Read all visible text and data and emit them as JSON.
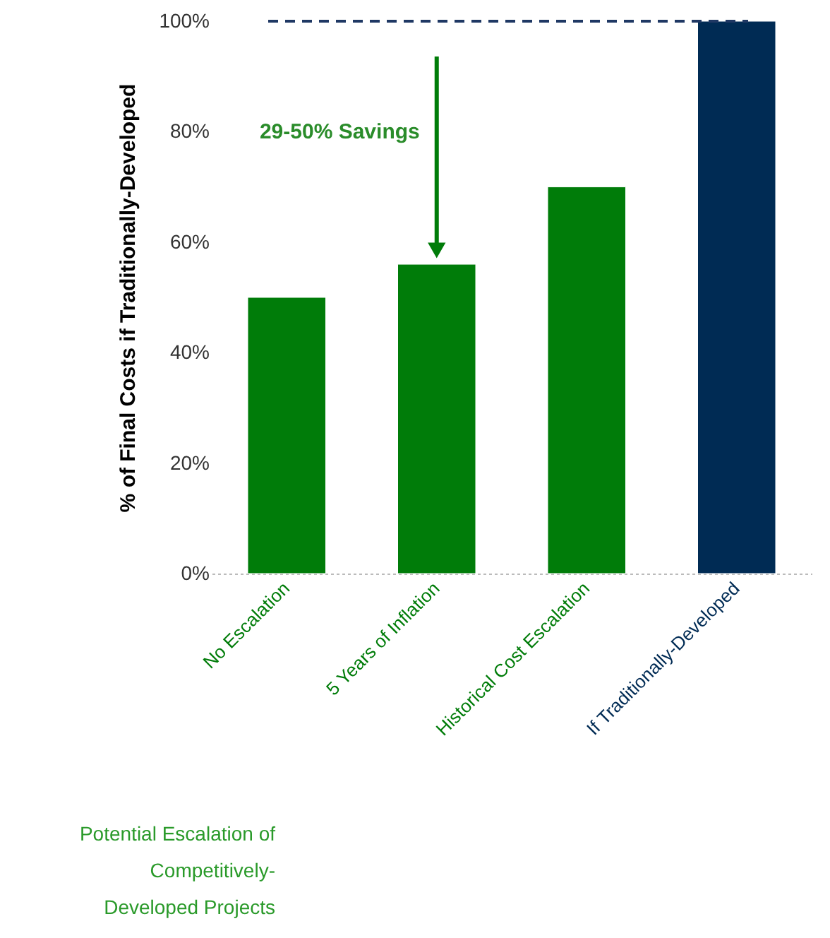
{
  "chart_data": {
    "type": "bar",
    "ylabel": "% of  Final Costs if Traditionally-Developed",
    "categories": [
      "No Escalation",
      "5 Years of Inflation",
      "Historical Cost Escalation",
      "If Traditionally-Developed"
    ],
    "values": [
      50,
      56,
      70,
      100
    ],
    "colors": [
      "#007c09",
      "#007c09",
      "#007c09",
      "#002b54"
    ],
    "ylim": [
      0,
      100
    ],
    "yticks": [
      {
        "value": 0,
        "label": "0%"
      },
      {
        "value": 20,
        "label": "20%"
      },
      {
        "value": 40,
        "label": "40%"
      },
      {
        "value": 60,
        "label": "60%"
      },
      {
        "value": 80,
        "label": "80%"
      },
      {
        "value": 100,
        "label": "100%"
      }
    ],
    "grid": false,
    "ref_lines": [
      {
        "axis": "y",
        "value": 100,
        "color": "#1f3864",
        "line_style": "dashed"
      }
    ],
    "annotations": [
      "29-50% Savings",
      "Potential Escalation of Competitively-Developed Projects"
    ]
  }
}
